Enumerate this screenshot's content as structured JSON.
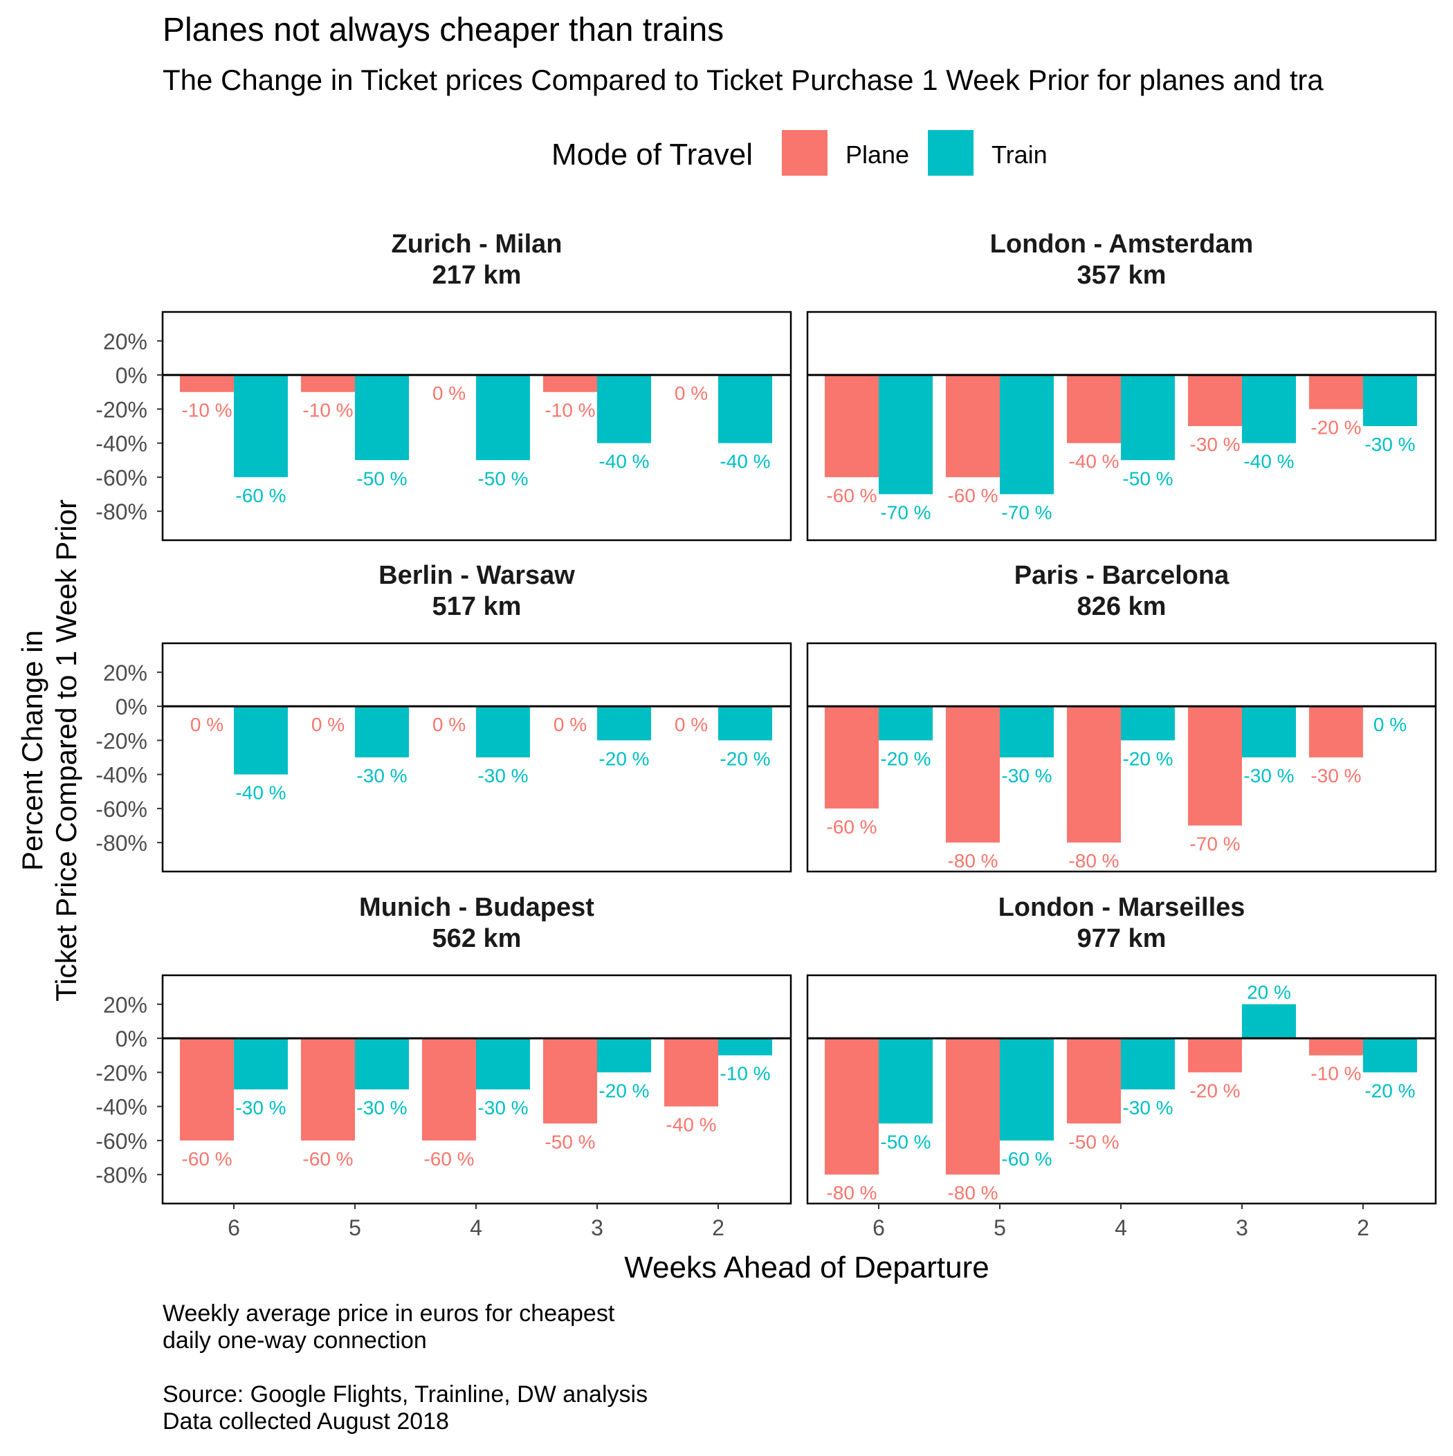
{
  "title": "Planes not always cheaper than trains",
  "subtitle": "The Change in Ticket prices Compared to Ticket Purchase 1 Week Prior for planes and tra",
  "legend": {
    "title": "Mode of Travel",
    "items": [
      {
        "label": "Plane",
        "color": "#F8766D"
      },
      {
        "label": "Train",
        "color": "#00BFC4"
      }
    ]
  },
  "caption": [
    "Weekly average price in euros for cheapest",
    "daily one-way connection",
    "",
    "Source: Google Flights, Trainline, DW analysis",
    "Data collected August 2018"
  ],
  "chart_data": {
    "type": "bar",
    "layout": "faceted grid, 3 rows x 2 columns, grouped bars",
    "xlabel": "Weeks Ahead of Departure",
    "ylabel": [
      "Percent Change in",
      "Ticket Price Compared to 1 Week Prior"
    ],
    "categories": [
      "6",
      "5",
      "4",
      "3",
      "2"
    ],
    "y_ticks": [
      "20%",
      "0%",
      "-20%",
      "-40%",
      "-60%",
      "-80%"
    ],
    "y_tick_values": [
      20,
      0,
      -20,
      -40,
      -60,
      -80
    ],
    "ylim": [
      -97,
      37
    ],
    "legend_position": "top",
    "grid": false,
    "facets": [
      {
        "title": "Zurich - Milan",
        "subtitle": "217 km",
        "series": [
          {
            "name": "Plane",
            "values": [
              -10,
              -10,
              0,
              -10,
              0
            ],
            "labels": [
              "-10 %",
              "-10 %",
              "0 %",
              "-10 %",
              "0 %"
            ]
          },
          {
            "name": "Train",
            "values": [
              -60,
              -50,
              -50,
              -40,
              -40
            ],
            "labels": [
              "-60 %",
              "-50 %",
              "-50 %",
              "-40 %",
              "-40 %"
            ]
          }
        ]
      },
      {
        "title": "London - Amsterdam",
        "subtitle": "357 km",
        "series": [
          {
            "name": "Plane",
            "values": [
              -60,
              -60,
              -40,
              -30,
              -20
            ],
            "labels": [
              "-60 %",
              "-60 %",
              "-40 %",
              "-30 %",
              "-20 %"
            ]
          },
          {
            "name": "Train",
            "values": [
              -70,
              -70,
              -50,
              -40,
              -30
            ],
            "labels": [
              "-70 %",
              "-70 %",
              "-50 %",
              "-40 %",
              "-30 %"
            ]
          }
        ]
      },
      {
        "title": "Berlin - Warsaw",
        "subtitle": "517 km",
        "series": [
          {
            "name": "Plane",
            "values": [
              0,
              0,
              0,
              0,
              0
            ],
            "labels": [
              "0 %",
              "0 %",
              "0 %",
              "0 %",
              "0 %"
            ]
          },
          {
            "name": "Train",
            "values": [
              -40,
              -30,
              -30,
              -20,
              -20
            ],
            "labels": [
              "-40 %",
              "-30 %",
              "-30 %",
              "-20 %",
              "-20 %"
            ]
          }
        ]
      },
      {
        "title": "Paris - Barcelona",
        "subtitle": "826 km",
        "series": [
          {
            "name": "Plane",
            "values": [
              -60,
              -80,
              -80,
              -70,
              -30
            ],
            "labels": [
              "-60 %",
              "-80 %",
              "-80 %",
              "-70 %",
              "-30 %"
            ]
          },
          {
            "name": "Train",
            "values": [
              -20,
              -30,
              -20,
              -30,
              0
            ],
            "labels": [
              "-20 %",
              "-30 %",
              "-20 %",
              "-30 %",
              "0 %"
            ]
          }
        ]
      },
      {
        "title": "Munich - Budapest",
        "subtitle": "562 km",
        "series": [
          {
            "name": "Plane",
            "values": [
              -60,
              -60,
              -60,
              -50,
              -40
            ],
            "labels": [
              "-60 %",
              "-60 %",
              "-60 %",
              "-50 %",
              "-40 %"
            ]
          },
          {
            "name": "Train",
            "values": [
              -30,
              -30,
              -30,
              -20,
              -10
            ],
            "labels": [
              "-30 %",
              "-30 %",
              "-30 %",
              "-20 %",
              "-10 %"
            ]
          }
        ]
      },
      {
        "title": "London - Marseilles",
        "subtitle": "977 km",
        "series": [
          {
            "name": "Plane",
            "values": [
              -80,
              -80,
              -50,
              -20,
              -10
            ],
            "labels": [
              "-80 %",
              "-80 %",
              "-50 %",
              "-20 %",
              "-10 %"
            ]
          },
          {
            "name": "Train",
            "values": [
              -50,
              -60,
              -30,
              20,
              -20
            ],
            "labels": [
              "-50 %",
              "-60 %",
              "-30 %",
              "20 %",
              "-20 %"
            ]
          }
        ]
      }
    ]
  }
}
